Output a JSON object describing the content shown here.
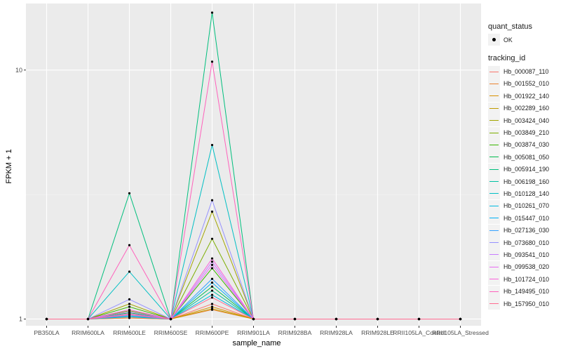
{
  "chart_data": {
    "type": "line",
    "xlabel": "sample_name",
    "ylabel": "FPKM + 1",
    "y_scale": "log10",
    "ylim": [
      0.94,
      18.5
    ],
    "y_ticks": [
      1,
      10
    ],
    "y_tick_labels": [
      "1",
      "10"
    ],
    "grid": true,
    "legend_position": "right",
    "categories": [
      "PB350LA",
      "RRIM600LA",
      "RRIM600LE",
      "RRIM600SE",
      "RRIM600PE",
      "RRIM901LA",
      "RRIM928BA",
      "RRIM928LA",
      "RRIM928LE",
      "RRII105LA_Control",
      "RRII105LA_Stressed"
    ],
    "quant_status": {
      "title": "quant_status",
      "entries": [
        {
          "label": "OK",
          "color": "#000000"
        }
      ]
    },
    "tracking_legend_title": "tracking_id",
    "series": [
      {
        "name": "Hb_000087_110",
        "color": "#F8766D",
        "values": [
          1,
          1,
          1.01,
          1,
          1.15,
          1,
          1,
          1,
          1,
          1,
          1
        ]
      },
      {
        "name": "Hb_001552_010",
        "color": "#EA8331",
        "values": [
          1,
          1,
          1.01,
          1,
          1.09,
          1,
          1,
          1,
          1,
          1,
          1
        ]
      },
      {
        "name": "Hb_001922_140",
        "color": "#D89000",
        "values": [
          1,
          1,
          1.02,
          1,
          1.12,
          1,
          1,
          1,
          1,
          1,
          1
        ]
      },
      {
        "name": "Hb_002289_160",
        "color": "#C09B00",
        "values": [
          1,
          1,
          1.05,
          1,
          1.1,
          1,
          1,
          1,
          1,
          1,
          1
        ]
      },
      {
        "name": "Hb_003424_040",
        "color": "#A3A500",
        "values": [
          1,
          1,
          1.15,
          1,
          2.7,
          1,
          1,
          1,
          1,
          1,
          1
        ]
      },
      {
        "name": "Hb_003849_210",
        "color": "#7CAE00",
        "values": [
          1,
          1,
          1.08,
          1,
          2.1,
          1,
          1,
          1,
          1,
          1,
          1
        ]
      },
      {
        "name": "Hb_003874_030",
        "color": "#39B600",
        "values": [
          1,
          1,
          1.12,
          1,
          1.6,
          1,
          1,
          1,
          1,
          1,
          1
        ]
      },
      {
        "name": "Hb_005081_050",
        "color": "#00BB4E",
        "values": [
          1,
          1,
          1.06,
          1,
          1.35,
          1,
          1,
          1,
          1,
          1,
          1
        ]
      },
      {
        "name": "Hb_005914_190",
        "color": "#00BF7D",
        "values": [
          1,
          1,
          3.2,
          1,
          17.0,
          1,
          1,
          1,
          1,
          1,
          1
        ]
      },
      {
        "name": "Hb_006198_160",
        "color": "#00C1A3",
        "values": [
          1,
          1,
          1.03,
          1,
          1.3,
          1,
          1,
          1,
          1,
          1,
          1
        ]
      },
      {
        "name": "Hb_010128_140",
        "color": "#00BFC4",
        "values": [
          1,
          1,
          1.55,
          1,
          5.0,
          1,
          1,
          1,
          1,
          1,
          1
        ]
      },
      {
        "name": "Hb_010261_070",
        "color": "#00BAE0",
        "values": [
          1,
          1,
          1.02,
          1,
          1.25,
          1,
          1,
          1,
          1,
          1,
          1
        ]
      },
      {
        "name": "Hb_015447_010",
        "color": "#00B0F6",
        "values": [
          1,
          1,
          1.04,
          1,
          1.4,
          1,
          1,
          1,
          1,
          1,
          1
        ]
      },
      {
        "name": "Hb_027136_030",
        "color": "#35A2FF",
        "values": [
          1,
          1,
          1.03,
          1,
          1.45,
          1,
          1,
          1,
          1,
          1,
          1
        ]
      },
      {
        "name": "Hb_073680_010",
        "color": "#9590FF",
        "values": [
          1,
          1,
          1.2,
          1,
          3.0,
          1,
          1,
          1,
          1,
          1,
          1
        ]
      },
      {
        "name": "Hb_093541_010",
        "color": "#C77CFF",
        "values": [
          1,
          1,
          1.07,
          1,
          1.7,
          1,
          1,
          1,
          1,
          1,
          1
        ]
      },
      {
        "name": "Hb_099538_020",
        "color": "#E76BF3",
        "values": [
          1,
          1,
          1.05,
          1,
          1.65,
          1,
          1,
          1,
          1,
          1,
          1
        ]
      },
      {
        "name": "Hb_101724_010",
        "color": "#FA62DB",
        "values": [
          1,
          1,
          1.09,
          1,
          1.75,
          1,
          1,
          1,
          1,
          1,
          1
        ]
      },
      {
        "name": "Hb_149495_010",
        "color": "#FF62BC",
        "values": [
          1,
          1,
          1.98,
          1,
          10.8,
          1,
          1,
          1,
          1,
          1,
          1
        ]
      },
      {
        "name": "Hb_157950_010",
        "color": "#FF6C91",
        "values": [
          1,
          1,
          1.04,
          1,
          1.22,
          1,
          1,
          1,
          1,
          1,
          1
        ]
      }
    ]
  }
}
